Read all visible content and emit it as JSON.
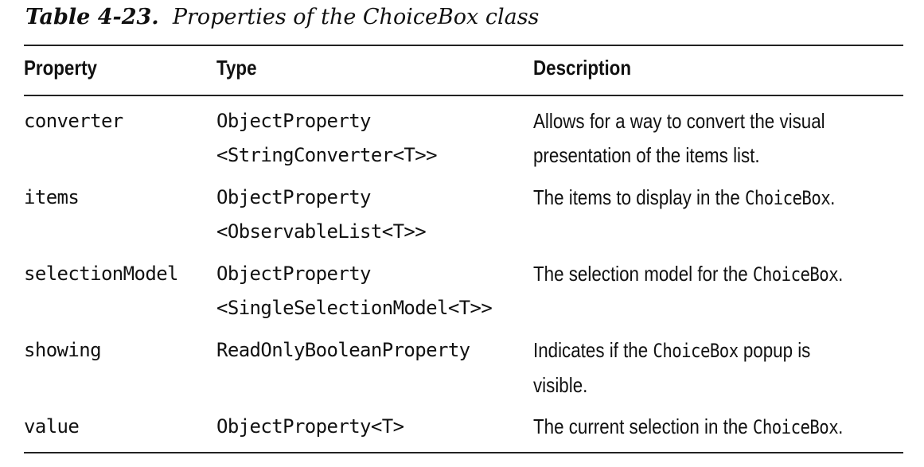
{
  "caption": {
    "number": "Table 4-23.",
    "title": "Properties of the ChoiceBox class"
  },
  "headers": {
    "property": "Property",
    "type": "Type",
    "description": "Description"
  },
  "rows": [
    {
      "property": "converter",
      "type_line1": "ObjectProperty",
      "type_line2": "<StringConverter<T>>",
      "desc_line1": "Allows for a way to convert the visual",
      "desc_line2": "presentation of the items list."
    },
    {
      "property": "items",
      "type_line1": "ObjectProperty",
      "type_line2": "<ObservableList<T>>",
      "desc_pre": "The items to display in the ",
      "desc_code": "ChoiceBox",
      "desc_post": "."
    },
    {
      "property": "selectionModel",
      "type_line1": "ObjectProperty",
      "type_line2": "<SingleSelectionModel<T>>",
      "desc_pre": "The selection model for the ",
      "desc_code": "ChoiceBox",
      "desc_post": "."
    },
    {
      "property": "showing",
      "type_line1": "ReadOnlyBooleanProperty",
      "desc_pre": "Indicates if the ",
      "desc_code": "ChoiceBox",
      "desc_post": " popup is",
      "desc_line2": "visible."
    },
    {
      "property": "value",
      "type_line1": "ObjectProperty<T>",
      "desc_pre": "The current selection in the ",
      "desc_code": "ChoiceBox",
      "desc_post": "."
    }
  ]
}
